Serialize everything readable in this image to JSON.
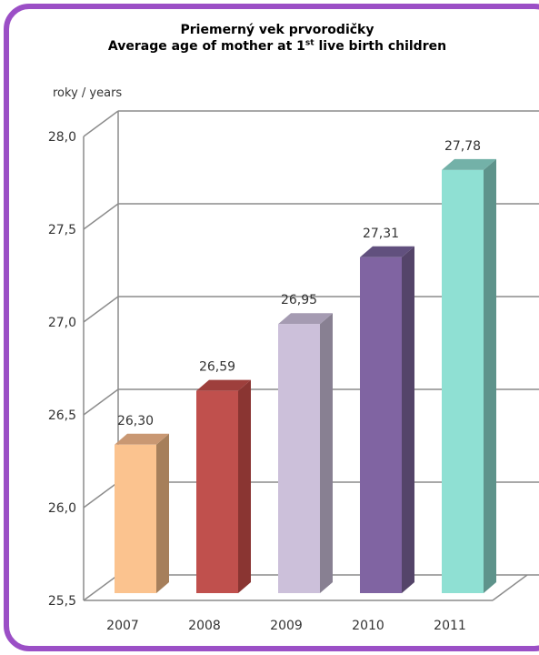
{
  "chart_data": {
    "type": "bar",
    "title_line1": "Priemerný vek  prvorodičky",
    "title_line2_pre": "Average age of mother at 1",
    "title_line2_sup": "st",
    "title_line2_post": " live birth children",
    "ylabel": "roky / years",
    "categories": [
      "2007",
      "2008",
      "2009",
      "2010",
      "2011"
    ],
    "values": [
      26.3,
      26.59,
      26.95,
      27.31,
      27.78
    ],
    "value_labels": [
      "26,30",
      "26,59",
      "26,95",
      "27,31",
      "27,78"
    ],
    "yticks": [
      "25,5",
      "26,0",
      "26,5",
      "27,0",
      "27,5",
      "28,0"
    ],
    "ylim": [
      25.5,
      28.0
    ],
    "grid": true,
    "colors": {
      "front": [
        "#fbc38f",
        "#c0504d",
        "#ccc0da",
        "#8064a2",
        "#8fe0d3"
      ],
      "side": [
        "#a67f5b",
        "#8a3532",
        "#888092",
        "#544469",
        "#5e938b"
      ],
      "top": [
        "#c99873",
        "#9e3f3c",
        "#a59bb2",
        "#61507e",
        "#73b1a8"
      ]
    },
    "frame_color": "#9b4fc6"
  }
}
